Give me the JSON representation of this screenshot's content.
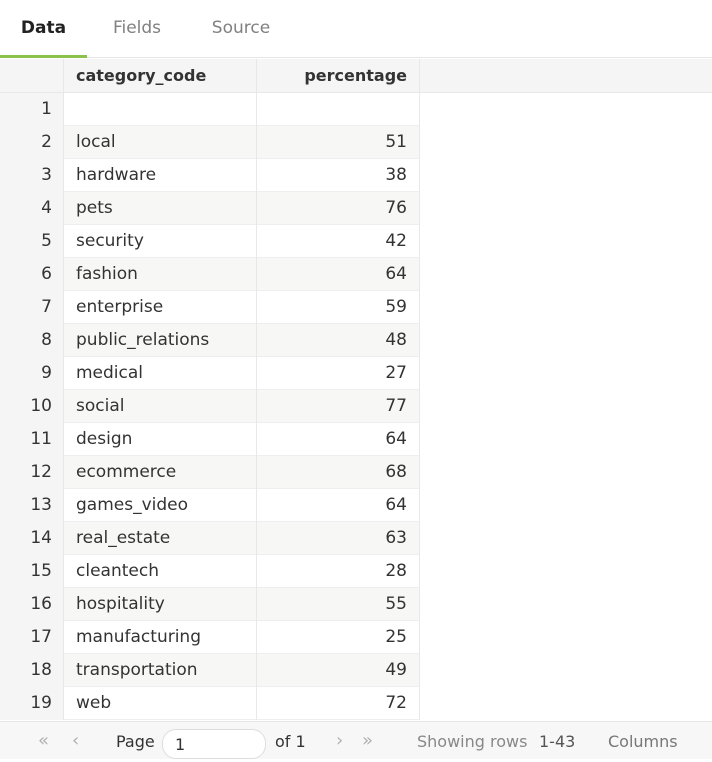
{
  "tabs": [
    {
      "label": "Data",
      "active": true
    },
    {
      "label": "Fields",
      "active": false
    },
    {
      "label": "Source",
      "active": false
    }
  ],
  "table": {
    "columns": [
      "category_code",
      "percentage"
    ],
    "rows": [
      {
        "n": "1",
        "category": "",
        "pct": ""
      },
      {
        "n": "2",
        "category": "local",
        "pct": "51"
      },
      {
        "n": "3",
        "category": "hardware",
        "pct": "38"
      },
      {
        "n": "4",
        "category": "pets",
        "pct": "76"
      },
      {
        "n": "5",
        "category": "security",
        "pct": "42"
      },
      {
        "n": "6",
        "category": "fashion",
        "pct": "64"
      },
      {
        "n": "7",
        "category": "enterprise",
        "pct": "59"
      },
      {
        "n": "8",
        "category": "public_relations",
        "pct": "48"
      },
      {
        "n": "9",
        "category": "medical",
        "pct": "27"
      },
      {
        "n": "10",
        "category": "social",
        "pct": "77"
      },
      {
        "n": "11",
        "category": "design",
        "pct": "64"
      },
      {
        "n": "12",
        "category": "ecommerce",
        "pct": "68"
      },
      {
        "n": "13",
        "category": "games_video",
        "pct": "64"
      },
      {
        "n": "14",
        "category": "real_estate",
        "pct": "63"
      },
      {
        "n": "15",
        "category": "cleantech",
        "pct": "28"
      },
      {
        "n": "16",
        "category": "hospitality",
        "pct": "55"
      },
      {
        "n": "17",
        "category": "manufacturing",
        "pct": "25"
      },
      {
        "n": "18",
        "category": "transportation",
        "pct": "49"
      },
      {
        "n": "19",
        "category": "web",
        "pct": "72"
      }
    ]
  },
  "footer": {
    "first_icon": "«",
    "prev_icon": "‹",
    "next_icon": "›",
    "last_icon": "»",
    "page_label": "Page",
    "page_value": "1",
    "of_label": "of 1",
    "showing_label": "Showing rows",
    "rows_range": "1-43",
    "columns_label": "Columns"
  },
  "colors": {
    "accent": "#8bc34a"
  }
}
